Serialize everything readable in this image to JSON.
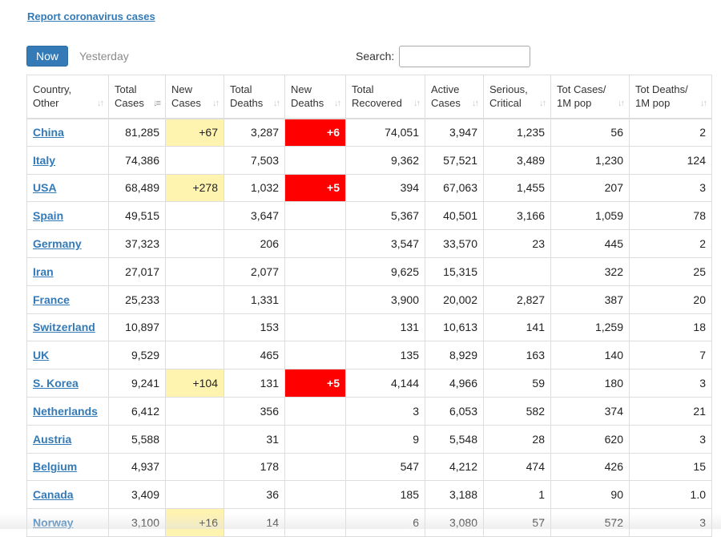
{
  "report_link": "Report coronavirus cases",
  "toolbar": {
    "now_label": "Now",
    "yesterday_label": "Yesterday",
    "search_label": "Search:",
    "search_value": ""
  },
  "colors": {
    "new_cases_highlight": "#fff3b0",
    "new_deaths_highlight": "#ff0000",
    "link": "#337ab7"
  },
  "table": {
    "headers": [
      {
        "line1": "Country,",
        "line2": "Other",
        "sort_icon": "sort-both-icon"
      },
      {
        "line1": "Total",
        "line2": "Cases",
        "sort_icon": "sort-desc-icon"
      },
      {
        "line1": "New",
        "line2": "Cases",
        "sort_icon": "sort-both-icon"
      },
      {
        "line1": "Total",
        "line2": "Deaths",
        "sort_icon": "sort-both-icon"
      },
      {
        "line1": "New",
        "line2": "Deaths",
        "sort_icon": "sort-both-icon"
      },
      {
        "line1": "Total",
        "line2": "Recovered",
        "sort_icon": "sort-both-icon"
      },
      {
        "line1": "Active",
        "line2": "Cases",
        "sort_icon": "sort-both-icon"
      },
      {
        "line1": "Serious,",
        "line2": "Critical",
        "sort_icon": "sort-both-icon"
      },
      {
        "line1": "Tot Cases/",
        "line2": "1M pop",
        "sort_icon": "sort-both-icon"
      },
      {
        "line1": "Tot Deaths/",
        "line2": "1M pop",
        "sort_icon": "sort-both-icon"
      }
    ],
    "rows": [
      {
        "country": "China",
        "total_cases": "81,285",
        "new_cases": "+67",
        "total_deaths": "3,287",
        "new_deaths": "+6",
        "total_recovered": "74,051",
        "active_cases": "3,947",
        "serious_critical": "1,235",
        "cases_per_1m": "56",
        "deaths_per_1m": "2"
      },
      {
        "country": "Italy",
        "total_cases": "74,386",
        "new_cases": "",
        "total_deaths": "7,503",
        "new_deaths": "",
        "total_recovered": "9,362",
        "active_cases": "57,521",
        "serious_critical": "3,489",
        "cases_per_1m": "1,230",
        "deaths_per_1m": "124"
      },
      {
        "country": "USA",
        "total_cases": "68,489",
        "new_cases": "+278",
        "total_deaths": "1,032",
        "new_deaths": "+5",
        "total_recovered": "394",
        "active_cases": "67,063",
        "serious_critical": "1,455",
        "cases_per_1m": "207",
        "deaths_per_1m": "3"
      },
      {
        "country": "Spain",
        "total_cases": "49,515",
        "new_cases": "",
        "total_deaths": "3,647",
        "new_deaths": "",
        "total_recovered": "5,367",
        "active_cases": "40,501",
        "serious_critical": "3,166",
        "cases_per_1m": "1,059",
        "deaths_per_1m": "78"
      },
      {
        "country": "Germany",
        "total_cases": "37,323",
        "new_cases": "",
        "total_deaths": "206",
        "new_deaths": "",
        "total_recovered": "3,547",
        "active_cases": "33,570",
        "serious_critical": "23",
        "cases_per_1m": "445",
        "deaths_per_1m": "2"
      },
      {
        "country": "Iran",
        "total_cases": "27,017",
        "new_cases": "",
        "total_deaths": "2,077",
        "new_deaths": "",
        "total_recovered": "9,625",
        "active_cases": "15,315",
        "serious_critical": "",
        "cases_per_1m": "322",
        "deaths_per_1m": "25"
      },
      {
        "country": "France",
        "total_cases": "25,233",
        "new_cases": "",
        "total_deaths": "1,331",
        "new_deaths": "",
        "total_recovered": "3,900",
        "active_cases": "20,002",
        "serious_critical": "2,827",
        "cases_per_1m": "387",
        "deaths_per_1m": "20"
      },
      {
        "country": "Switzerland",
        "total_cases": "10,897",
        "new_cases": "",
        "total_deaths": "153",
        "new_deaths": "",
        "total_recovered": "131",
        "active_cases": "10,613",
        "serious_critical": "141",
        "cases_per_1m": "1,259",
        "deaths_per_1m": "18"
      },
      {
        "country": "UK",
        "total_cases": "9,529",
        "new_cases": "",
        "total_deaths": "465",
        "new_deaths": "",
        "total_recovered": "135",
        "active_cases": "8,929",
        "serious_critical": "163",
        "cases_per_1m": "140",
        "deaths_per_1m": "7"
      },
      {
        "country": "S. Korea",
        "total_cases": "9,241",
        "new_cases": "+104",
        "total_deaths": "131",
        "new_deaths": "+5",
        "total_recovered": "4,144",
        "active_cases": "4,966",
        "serious_critical": "59",
        "cases_per_1m": "180",
        "deaths_per_1m": "3"
      },
      {
        "country": "Netherlands",
        "total_cases": "6,412",
        "new_cases": "",
        "total_deaths": "356",
        "new_deaths": "",
        "total_recovered": "3",
        "active_cases": "6,053",
        "serious_critical": "582",
        "cases_per_1m": "374",
        "deaths_per_1m": "21"
      },
      {
        "country": "Austria",
        "total_cases": "5,588",
        "new_cases": "",
        "total_deaths": "31",
        "new_deaths": "",
        "total_recovered": "9",
        "active_cases": "5,548",
        "serious_critical": "28",
        "cases_per_1m": "620",
        "deaths_per_1m": "3"
      },
      {
        "country": "Belgium",
        "total_cases": "4,937",
        "new_cases": "",
        "total_deaths": "178",
        "new_deaths": "",
        "total_recovered": "547",
        "active_cases": "4,212",
        "serious_critical": "474",
        "cases_per_1m": "426",
        "deaths_per_1m": "15"
      },
      {
        "country": "Canada",
        "total_cases": "3,409",
        "new_cases": "",
        "total_deaths": "36",
        "new_deaths": "",
        "total_recovered": "185",
        "active_cases": "3,188",
        "serious_critical": "1",
        "cases_per_1m": "90",
        "deaths_per_1m": "1.0"
      },
      {
        "country": "Norway",
        "total_cases": "3,100",
        "new_cases": "+16",
        "total_deaths": "14",
        "new_deaths": "",
        "total_recovered": "6",
        "active_cases": "3,080",
        "serious_critical": "57",
        "cases_per_1m": "572",
        "deaths_per_1m": "3"
      }
    ]
  }
}
